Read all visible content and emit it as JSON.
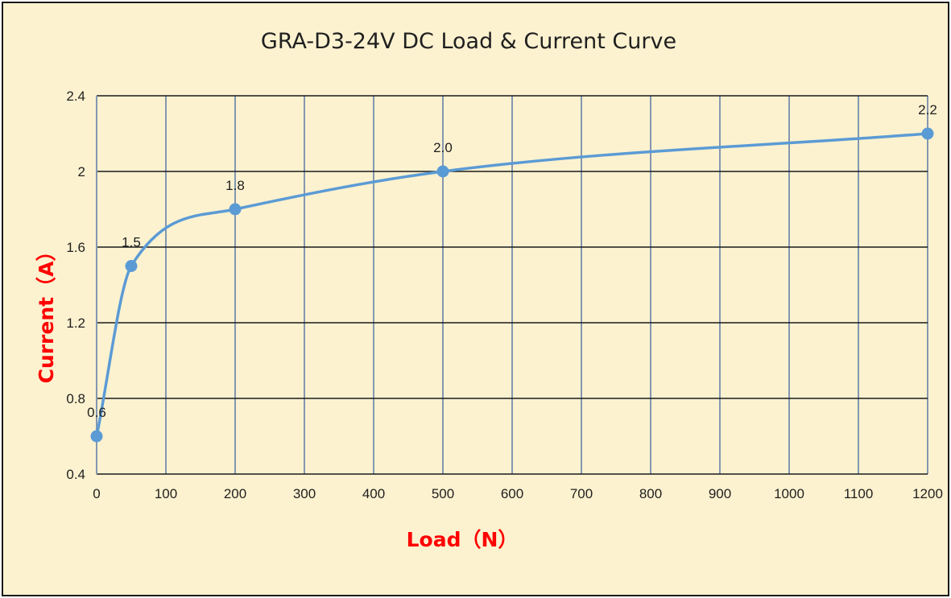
{
  "chart_data": {
    "type": "line",
    "title": "GRA-D3-24V DC Load & Current Curve",
    "xlabel": "Load（N）",
    "ylabel": "Current（A）",
    "x": [
      0,
      50,
      200,
      500,
      1200
    ],
    "series": [
      {
        "values": [
          0.6,
          1.5,
          1.8,
          2.0,
          2.2
        ],
        "labels": [
          "0.6",
          "1.5",
          "1.8",
          "2.0",
          "2.2"
        ]
      }
    ],
    "xlim": [
      0,
      1200
    ],
    "ylim": [
      0.4,
      2.4
    ],
    "xticks": [
      "0",
      "100",
      "200",
      "300",
      "400",
      "500",
      "600",
      "700",
      "800",
      "900",
      "1000",
      "1100",
      "1200"
    ],
    "yticks": [
      "0.4",
      "0.8",
      "1.2",
      "1.6",
      "2",
      "2.4"
    ],
    "smooth": true,
    "grid": true,
    "legend": "none",
    "colors": {
      "background": "#fdf2d0",
      "series": "#5b9bd5",
      "axis_title": "#ff0000",
      "hgrid": "#1a1a1a",
      "vgrid": "#8497b0"
    }
  }
}
